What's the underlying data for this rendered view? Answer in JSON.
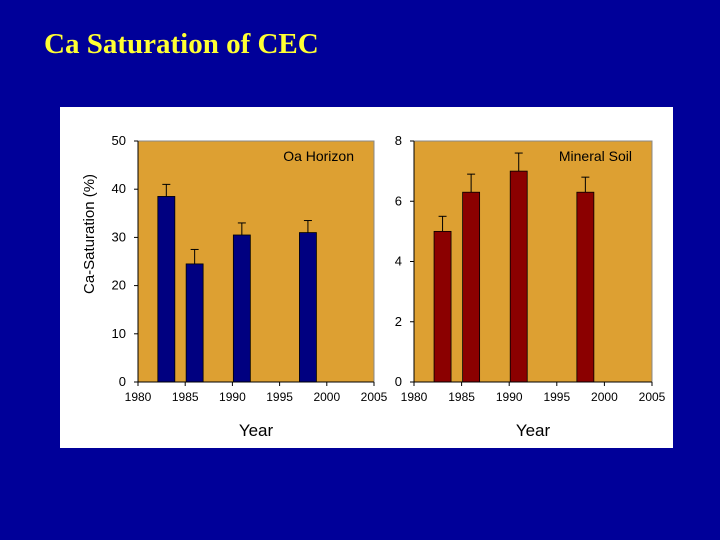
{
  "slide": {
    "title": "Ca Saturation of CEC"
  },
  "colors": {
    "background": "#000099",
    "title": "#FFFF33",
    "plot_bg": "#DDA032",
    "oa_bars": "#000080",
    "mineral_bars": "#8B0000"
  },
  "chart_data": [
    {
      "type": "bar",
      "panel_label": "Oa Horizon",
      "xlabel": "Year",
      "ylabel": "Ca-Saturation (%)",
      "xlim": [
        1980,
        2005
      ],
      "ylim": [
        0,
        50
      ],
      "x_ticks": [
        "1980",
        "1985",
        "1990",
        "1995",
        "2000",
        "2005"
      ],
      "y_ticks": [
        "0",
        "10",
        "20",
        "30",
        "40",
        "50"
      ],
      "x": [
        1983,
        1986,
        1991,
        1998
      ],
      "values": [
        38.5,
        24.5,
        30.5,
        31
      ],
      "error_upper": [
        41,
        27.5,
        33,
        33.5
      ],
      "bar_color": "#000080",
      "grid": false
    },
    {
      "type": "bar",
      "panel_label": "Mineral Soil",
      "xlabel": "Year",
      "ylabel": "",
      "xlim": [
        1980,
        2005
      ],
      "ylim": [
        0,
        8
      ],
      "x_ticks": [
        "1980",
        "1985",
        "1990",
        "1995",
        "2000",
        "2005"
      ],
      "y_ticks": [
        "0",
        "2",
        "4",
        "6",
        "8"
      ],
      "x": [
        1983,
        1986,
        1991,
        1998
      ],
      "values": [
        5,
        6.3,
        7,
        6.3
      ],
      "error_upper": [
        5.5,
        6.9,
        7.6,
        6.8
      ],
      "bar_color": "#8B0000",
      "grid": false
    }
  ]
}
